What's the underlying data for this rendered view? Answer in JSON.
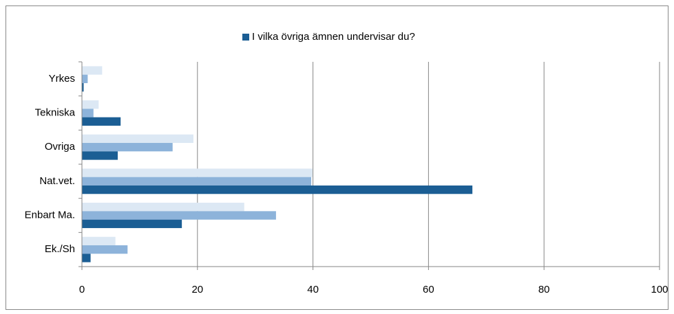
{
  "chart_data": {
    "type": "bar",
    "orientation": "horizontal",
    "categories": [
      "Yrkes",
      "Tekniska",
      "Ovriga",
      "Nat.vet.",
      "Enbart Ma.",
      "Ek./Sh"
    ],
    "series": [
      {
        "color": "#dce8f4",
        "values": [
          3.5,
          2.9,
          19.3,
          39.9,
          28.1,
          5.8
        ]
      },
      {
        "color": "#8db3da",
        "values": [
          1.0,
          2.0,
          15.7,
          39.7,
          33.6,
          7.9
        ]
      },
      {
        "name": "I vilka övriga ämnen undervisar du?",
        "color": "#1b5e94",
        "values": [
          0.3,
          6.7,
          6.2,
          67.6,
          17.3,
          1.5
        ]
      }
    ],
    "xlim": [
      0,
      100
    ],
    "xticks": [
      0,
      20,
      40,
      60,
      80,
      100
    ],
    "grid": true,
    "legend": "top"
  }
}
